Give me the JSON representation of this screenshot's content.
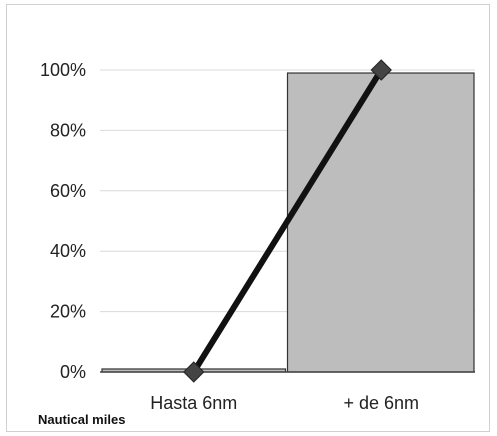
{
  "chart_data": {
    "type": "bar",
    "categories": [
      "Hasta 6nm",
      "+ de 6nm"
    ],
    "series": [
      {
        "values": [
          1,
          99
        ],
        "kind": "bar"
      },
      {
        "values": [
          0,
          100
        ],
        "kind": "line"
      }
    ],
    "xlabel": "Nautical miles",
    "ylabel": "",
    "ylim": [
      0,
      100
    ],
    "yticks": [
      "0%",
      "20%",
      "40%",
      "60%",
      "80%",
      "100%"
    ],
    "grid": true,
    "colors": {
      "bar": "#bdbdbd",
      "line": "#111111",
      "marker": "#444444",
      "grid": "#d9d9d9"
    }
  }
}
